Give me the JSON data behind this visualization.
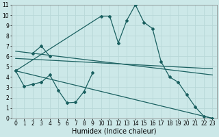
{
  "xlabel": "Humidex (Indice chaleur)",
  "bg_color": "#cce8e8",
  "grid_color": "#b8d8d8",
  "line_color": "#1a6060",
  "xlim": [
    -0.5,
    23.5
  ],
  "ylim": [
    0,
    11
  ],
  "xticks": [
    0,
    1,
    2,
    3,
    4,
    5,
    6,
    7,
    8,
    9,
    10,
    11,
    12,
    13,
    14,
    15,
    16,
    17,
    18,
    19,
    20,
    21,
    22,
    23
  ],
  "yticks": [
    0,
    1,
    2,
    3,
    4,
    5,
    6,
    7,
    8,
    9,
    10,
    11
  ],
  "series_zigzag": {
    "x": [
      0,
      1,
      2,
      3,
      4,
      5,
      6,
      7,
      8,
      9
    ],
    "y": [
      4.6,
      3.1,
      3.3,
      3.5,
      4.2,
      2.7,
      1.5,
      1.55,
      2.6,
      4.4
    ]
  },
  "series_peak_small": {
    "x": [
      2,
      3,
      4
    ],
    "y": [
      6.3,
      7.0,
      6.0
    ]
  },
  "series_main": {
    "x": [
      0,
      10,
      11,
      12,
      13,
      14,
      15,
      16,
      17,
      18,
      19,
      20,
      21,
      22,
      23
    ],
    "y": [
      4.6,
      9.9,
      9.9,
      7.3,
      9.5,
      11.0,
      9.3,
      8.7,
      5.5,
      4.0,
      3.5,
      2.3,
      1.1,
      0.2,
      0.0
    ]
  },
  "trend_lines": [
    {
      "x": [
        0,
        23
      ],
      "y": [
        6.5,
        4.2
      ]
    },
    {
      "x": [
        0,
        23
      ],
      "y": [
        5.8,
        4.8
      ]
    },
    {
      "x": [
        0,
        23
      ],
      "y": [
        4.6,
        0.0
      ]
    }
  ],
  "xlabel_fontsize": 7,
  "tick_fontsize": 5.5
}
